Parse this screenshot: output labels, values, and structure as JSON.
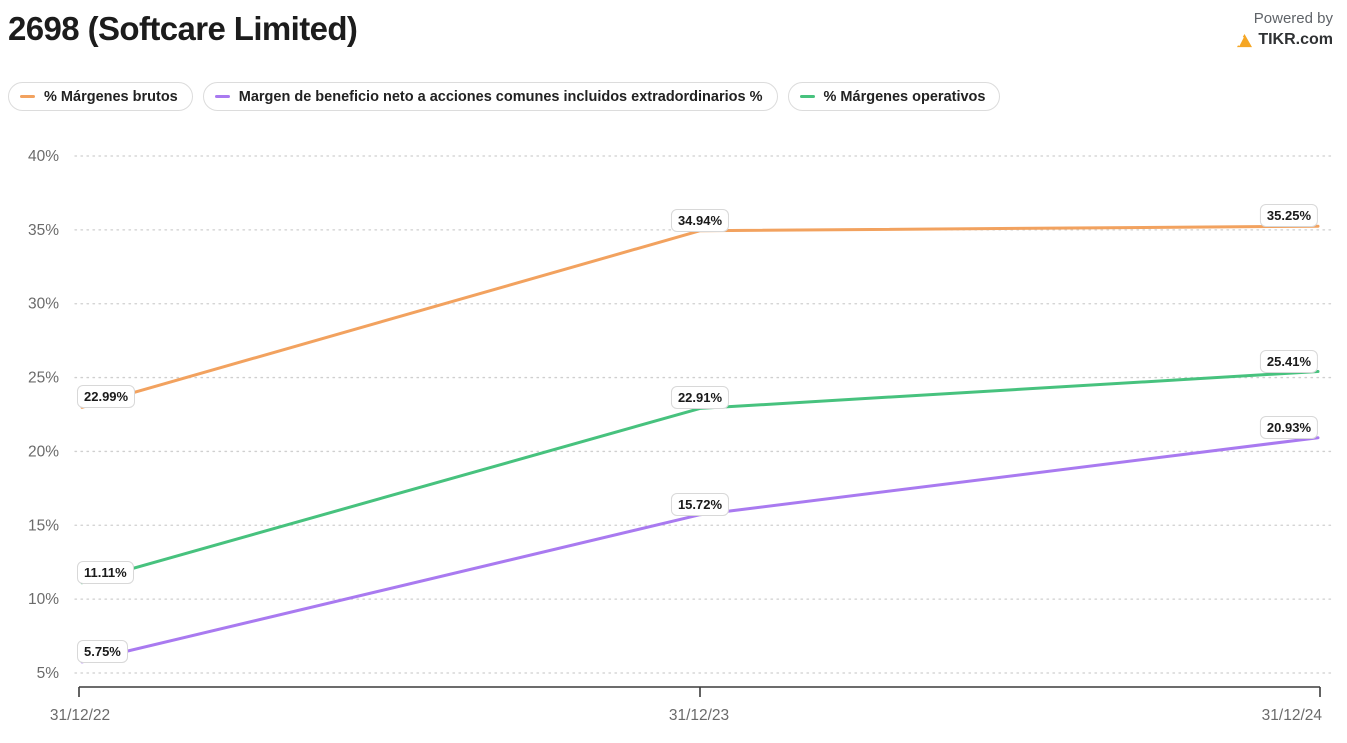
{
  "header": {
    "title": "2698 (Softcare Limited)",
    "powered_by": "Powered by",
    "brand": "TIKR.com",
    "brand_color": "#f5a623"
  },
  "chart_data": {
    "type": "line",
    "x": [
      "31/12/22",
      "31/12/23",
      "31/12/24"
    ],
    "series": [
      {
        "name": "% Márgenes brutos",
        "color": "#f2a25f",
        "values": [
          22.99,
          34.94,
          35.25
        ],
        "point_labels": [
          "22.99%",
          "34.94%",
          "35.25%"
        ]
      },
      {
        "name": "Margen de beneficio neto a acciones comunes incluidos extradordinarios %",
        "color": "#a97af0",
        "values": [
          5.75,
          15.72,
          20.93
        ],
        "point_labels": [
          "5.75%",
          "15.72%",
          "20.93%"
        ]
      },
      {
        "name": "% Márgenes operativos",
        "color": "#47c27e",
        "values": [
          11.11,
          22.91,
          25.41
        ],
        "point_labels": [
          "11.11%",
          "22.91%",
          "25.41%"
        ]
      }
    ],
    "title": "",
    "xlabel": "",
    "ylabel": "",
    "ylim": [
      5,
      40
    ],
    "y_tick_step": 5,
    "y_tick_labels": [
      "5%",
      "10%",
      "15%",
      "20%",
      "25%",
      "30%",
      "35%",
      "40%"
    ],
    "grid": "dotted-horizontal",
    "legend_position": "top-left",
    "colors": {
      "grid": "#cfcfcf",
      "axis": "#3c3c3c",
      "tick_text": "#6b6b6b"
    }
  }
}
